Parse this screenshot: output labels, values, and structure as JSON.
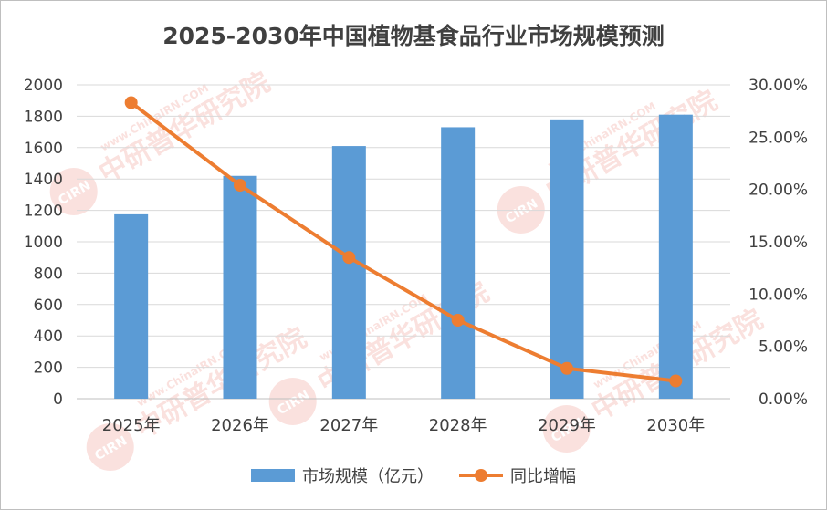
{
  "chart_data": {
    "type": "bar",
    "title": "2025-2030年中国植物基食品行业市场规模预测",
    "categories": [
      "2025年",
      "2026年",
      "2027年",
      "2028年",
      "2029年",
      "2030年"
    ],
    "series": [
      {
        "name": "市场规模（亿元）",
        "type": "bar",
        "axis": "left",
        "color": "#5b9bd5",
        "values": [
          1175,
          1420,
          1610,
          1730,
          1780,
          1810
        ]
      },
      {
        "name": "同比增幅",
        "type": "line",
        "axis": "right",
        "color": "#ed7d31",
        "values": [
          28.3,
          20.4,
          13.5,
          7.5,
          2.9,
          1.7
        ]
      }
    ],
    "y_left": {
      "min": 0,
      "max": 2000,
      "step": 200,
      "ticks": [
        "0",
        "200",
        "400",
        "600",
        "800",
        "1000",
        "1200",
        "1400",
        "1600",
        "1800",
        "2000"
      ]
    },
    "y_right": {
      "min": 0,
      "max": 30,
      "step": 5,
      "ticks": [
        "0.00%",
        "5.00%",
        "10.00%",
        "15.00%",
        "20.00%",
        "25.00%",
        "30.00%"
      ]
    },
    "grid": true,
    "legend_position": "bottom"
  },
  "watermark": {
    "text_cn": "中研普华研究院",
    "text_en": "www.ChinaIRN.COM",
    "logo": "CIRN"
  }
}
